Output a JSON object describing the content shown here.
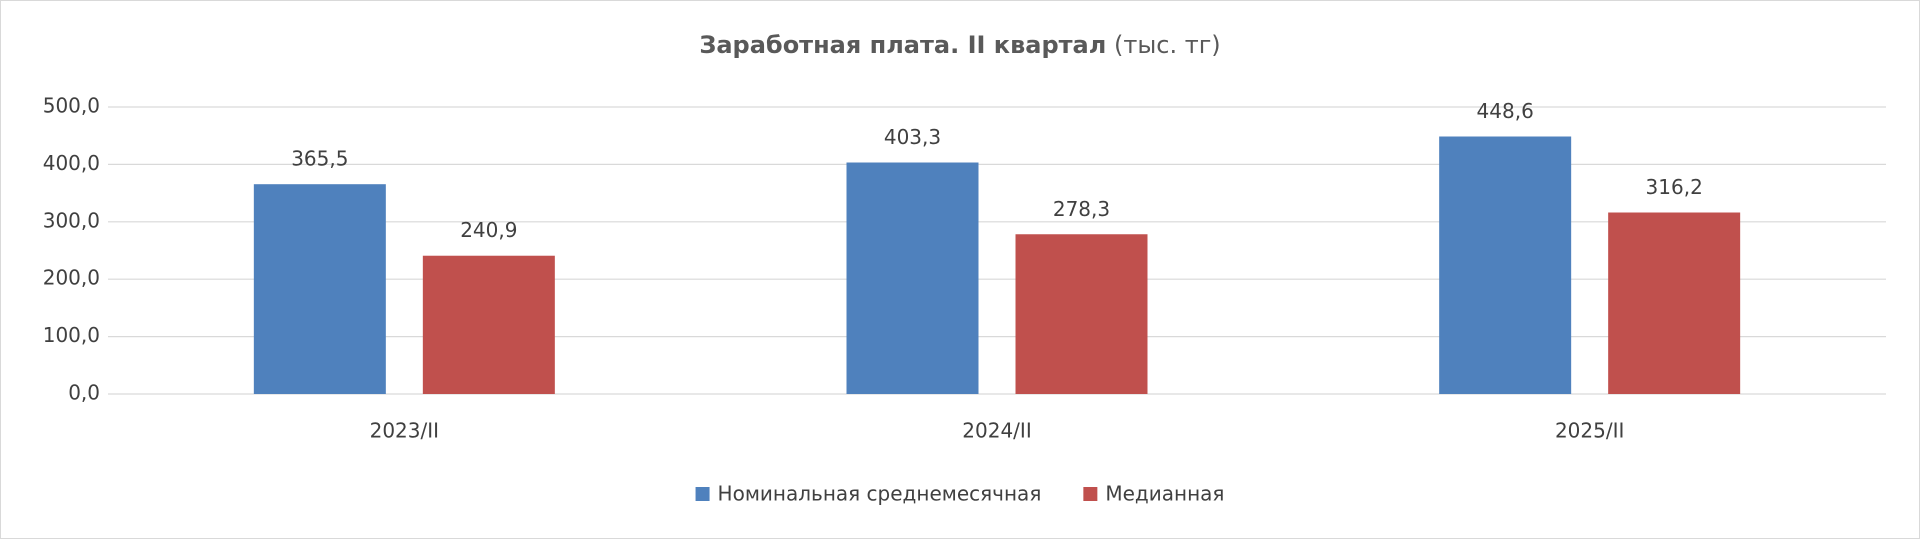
{
  "chart_data": {
    "type": "bar",
    "title": "Заработная плата. II квартал",
    "title_unit": "(тыс. тг)",
    "categories": [
      "2023/II",
      "2024/II",
      "2025/II"
    ],
    "series": [
      {
        "name": "Номинальная среднемесячная",
        "color": "#4f81bd",
        "values": [
          365.5,
          403.3,
          448.6
        ],
        "value_labels": [
          "365,5",
          "403,3",
          "448,6"
        ]
      },
      {
        "name": "Медианная",
        "color": "#c0504d",
        "values": [
          240.9,
          278.3,
          316.2
        ],
        "value_labels": [
          "240,9",
          "278,3",
          "316,2"
        ]
      }
    ],
    "ylim": [
      0,
      500
    ],
    "yticks": [
      {
        "value": 0,
        "label": "0,0"
      },
      {
        "value": 100,
        "label": "100,0"
      },
      {
        "value": 200,
        "label": "200,0"
      },
      {
        "value": 300,
        "label": "300,0"
      },
      {
        "value": 400,
        "label": "400,0"
      },
      {
        "value": 500,
        "label": "500,0"
      }
    ],
    "grid": true,
    "legend": "bottom"
  }
}
